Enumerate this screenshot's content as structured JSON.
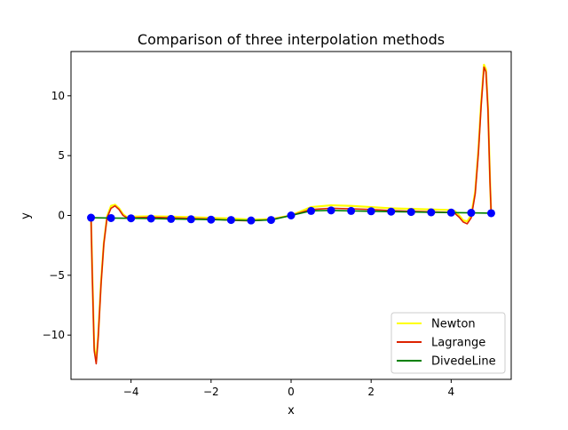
{
  "chart_data": {
    "type": "line",
    "title": "Comparison of three interpolation methods",
    "xlabel": "x",
    "ylabel": "y",
    "xlim": [
      -5.5,
      5.5
    ],
    "ylim": [
      -13.7,
      13.7
    ],
    "xticks": [
      -4,
      -2,
      0,
      2,
      4
    ],
    "xtick_labels": [
      "−4",
      "−2",
      "0",
      "2",
      "4"
    ],
    "yticks": [
      -10,
      -5,
      0,
      5,
      10
    ],
    "ytick_labels": [
      "−10",
      "−5",
      "0",
      "5",
      "10"
    ],
    "grid": false,
    "legend_position": "lower right",
    "nodes": {
      "x": [
        -5,
        -4.5,
        -4,
        -3.5,
        -3,
        -2.5,
        -2,
        -1.5,
        -1,
        -0.5,
        0,
        0.5,
        1,
        1.5,
        2,
        2.5,
        3,
        3.5,
        4,
        4.5,
        5
      ],
      "y": [
        -0.19,
        -0.22,
        -0.24,
        -0.26,
        -0.29,
        -0.32,
        -0.35,
        -0.38,
        -0.42,
        -0.38,
        0.0,
        0.38,
        0.42,
        0.38,
        0.35,
        0.32,
        0.29,
        0.26,
        0.24,
        0.22,
        0.19
      ],
      "color": "#0000ff"
    },
    "series": [
      {
        "name": "Newton",
        "color": "#ffff00",
        "x": [
          -5,
          -4.97,
          -4.92,
          -4.87,
          -4.82,
          -4.75,
          -4.68,
          -4.6,
          -4.5,
          -4.4,
          -4.3,
          -4.2,
          -4.1,
          -4.0,
          -3.5,
          -3.0,
          -2.5,
          -2.0,
          -1.5,
          -1.0,
          -0.5,
          0.0,
          0.5,
          1.0,
          1.5,
          2.0,
          2.5,
          3.0,
          3.5,
          4.0,
          4.1,
          4.2,
          4.3,
          4.4,
          4.5,
          4.6,
          4.68,
          4.75,
          4.82,
          4.87,
          4.92,
          4.97,
          5.0
        ],
        "y": [
          -0.05,
          -4.5,
          -11.0,
          -12.2,
          -10.0,
          -5.6,
          -2.3,
          -0.1,
          0.8,
          0.9,
          0.6,
          0.1,
          -0.15,
          -0.1,
          -0.07,
          -0.1,
          -0.15,
          -0.2,
          -0.25,
          -0.35,
          -0.3,
          0.0,
          0.7,
          0.85,
          0.8,
          0.7,
          0.6,
          0.55,
          0.5,
          0.45,
          0.35,
          0.0,
          -0.4,
          -0.5,
          0.0,
          2.0,
          5.5,
          9.5,
          12.6,
          12.2,
          9.0,
          3.0,
          0.05
        ]
      },
      {
        "name": "Lagrange",
        "color": "#dd2200",
        "x": [
          -5,
          -4.97,
          -4.92,
          -4.87,
          -4.82,
          -4.75,
          -4.68,
          -4.6,
          -4.5,
          -4.4,
          -4.3,
          -4.2,
          -4.1,
          -4.0,
          -3.5,
          -3.0,
          -2.5,
          -2.0,
          -1.5,
          -1.0,
          -0.5,
          0.0,
          0.5,
          1.0,
          1.5,
          2.0,
          2.5,
          3.0,
          3.5,
          4.0,
          4.1,
          4.2,
          4.3,
          4.4,
          4.5,
          4.6,
          4.68,
          4.75,
          4.82,
          4.87,
          4.92,
          4.97,
          5.0
        ],
        "y": [
          -0.1,
          -4.8,
          -11.3,
          -12.4,
          -10.2,
          -5.8,
          -2.4,
          -0.2,
          0.6,
          0.8,
          0.5,
          0.0,
          -0.2,
          -0.2,
          -0.15,
          -0.2,
          -0.25,
          -0.3,
          -0.4,
          -0.45,
          -0.35,
          0.0,
          0.5,
          0.6,
          0.55,
          0.5,
          0.4,
          0.35,
          0.3,
          0.25,
          0.15,
          -0.15,
          -0.55,
          -0.7,
          -0.2,
          1.8,
          5.2,
          9.2,
          12.4,
          12.0,
          8.8,
          2.8,
          0.1
        ]
      },
      {
        "name": "DivedeLine",
        "color": "#008000",
        "x": [
          -5,
          -4.5,
          -4,
          -3.5,
          -3,
          -2.5,
          -2,
          -1.5,
          -1,
          -0.5,
          0,
          0.5,
          1,
          1.5,
          2,
          2.5,
          3,
          3.5,
          4,
          4.5,
          5
        ],
        "y": [
          -0.19,
          -0.22,
          -0.24,
          -0.26,
          -0.29,
          -0.32,
          -0.35,
          -0.38,
          -0.42,
          -0.38,
          0.0,
          0.38,
          0.42,
          0.38,
          0.35,
          0.32,
          0.29,
          0.26,
          0.24,
          0.22,
          0.19
        ]
      }
    ]
  }
}
